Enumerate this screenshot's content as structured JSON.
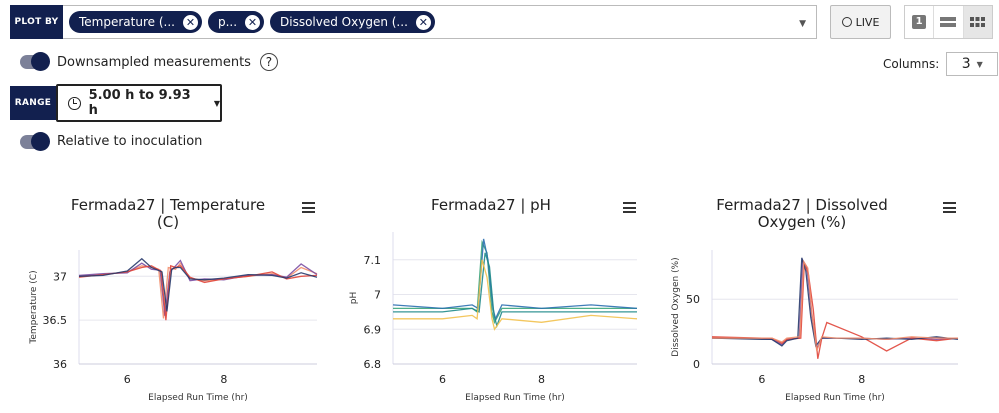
{
  "toolbar": {
    "plot_by_label": "PLOT BY",
    "chips": [
      "Temperature (...",
      "p...",
      "Dissolved Oxygen (..."
    ],
    "live_label": "LIVE",
    "layout_one_label": "1",
    "columns_label": "Columns:",
    "columns_value": "3"
  },
  "options": {
    "downsampled_label": "Downsampled measurements",
    "downsampled_on": true,
    "range_label": "RANGE",
    "range_value": "5.00 h to 9.93 h",
    "relative_label": "Relative to inoculation",
    "relative_on": true
  },
  "colors": {
    "navy": "#12204f",
    "series": [
      "#f28e6b",
      "#3aa57a",
      "#7b4fa3",
      "#2a6fb0",
      "#e0453a",
      "#1f8a8a",
      "#283a6b",
      "#f2c14e"
    ]
  },
  "chart_data": [
    {
      "type": "line",
      "title": "Fermada27 | Temperature (C)",
      "xlabel": "Elapsed Run Time (hr)",
      "ylabel": "Temperature (C)",
      "xlim": [
        5,
        9.93
      ],
      "ylim": [
        36,
        37.3
      ],
      "xticks": [
        6,
        8
      ],
      "yticks": [
        36,
        36.5,
        37
      ],
      "ytick_labels": [
        "36",
        "36.5",
        "37"
      ],
      "xtick_labels": [
        "6",
        "8"
      ],
      "series": [
        {
          "x": [
            5,
            5.5,
            6,
            6.3,
            6.5,
            6.65,
            6.75,
            6.85,
            7,
            7.1,
            7.3,
            7.6,
            8,
            8.5,
            9,
            9.3,
            9.6,
            9.93
          ],
          "y": [
            37.0,
            37.02,
            37.05,
            37.12,
            37.1,
            37.08,
            36.52,
            37.1,
            37.08,
            37.15,
            36.98,
            36.95,
            36.97,
            37.0,
            37.03,
            36.98,
            37.1,
            37.03
          ]
        },
        {
          "x": [
            5,
            5.5,
            6,
            6.3,
            6.5,
            6.68,
            6.78,
            6.88,
            7,
            7.1,
            7.3,
            7.6,
            8,
            8.5,
            9,
            9.3,
            9.6,
            9.93
          ],
          "y": [
            37.01,
            37.03,
            37.04,
            37.15,
            37.08,
            37.07,
            36.55,
            37.05,
            37.12,
            37.18,
            36.95,
            36.97,
            36.96,
            37.01,
            37.02,
            36.99,
            37.14,
            37.02
          ]
        },
        {
          "x": [
            5,
            5.5,
            6,
            6.3,
            6.5,
            6.7,
            6.8,
            6.9,
            7,
            7.1,
            7.3,
            7.6,
            8,
            8.5,
            9,
            9.3,
            9.6,
            9.93
          ],
          "y": [
            36.99,
            37.02,
            37.05,
            37.1,
            37.12,
            37.06,
            36.5,
            37.12,
            37.1,
            37.12,
            36.99,
            36.93,
            36.97,
            37.0,
            37.05,
            36.97,
            37.0,
            37.01
          ]
        },
        {
          "x": [
            5,
            5.5,
            6,
            6.3,
            6.5,
            6.72,
            6.82,
            6.92,
            7,
            7.1,
            7.3,
            7.6,
            8,
            8.5,
            9,
            9.3,
            9.6,
            9.93
          ],
          "y": [
            37.0,
            37.01,
            37.06,
            37.2,
            37.1,
            37.05,
            36.6,
            37.08,
            37.1,
            37.1,
            36.97,
            36.96,
            36.98,
            37.02,
            37.01,
            36.98,
            37.04,
            36.99
          ]
        }
      ]
    },
    {
      "type": "line",
      "title": "Fermada27 | pH",
      "xlabel": "Elapsed Run Time (hr)",
      "ylabel": "pH",
      "xlim": [
        5,
        9.93
      ],
      "ylim": [
        6.8,
        7.18
      ],
      "xticks": [
        6,
        8
      ],
      "yticks": [
        6.8,
        6.9,
        7,
        7.1
      ],
      "ytick_labels": [
        "6.8",
        "6.9",
        "7",
        "7.1"
      ],
      "xtick_labels": [
        "6",
        "8"
      ],
      "series": [
        {
          "x": [
            5,
            6,
            6.6,
            6.7,
            6.8,
            6.9,
            7.0,
            7.05,
            7.2,
            8,
            9,
            9.93
          ],
          "y": [
            6.96,
            6.96,
            6.96,
            6.95,
            7.15,
            7.12,
            6.95,
            6.92,
            6.96,
            6.96,
            6.96,
            6.96
          ]
        },
        {
          "x": [
            5,
            6,
            6.6,
            6.72,
            6.83,
            6.92,
            7.02,
            7.07,
            7.2,
            8,
            9,
            9.93
          ],
          "y": [
            6.97,
            6.96,
            6.97,
            6.96,
            7.16,
            7.1,
            6.96,
            6.93,
            6.97,
            6.96,
            6.97,
            6.96
          ]
        },
        {
          "x": [
            5,
            6,
            6.6,
            6.74,
            6.86,
            6.95,
            7.04,
            7.1,
            7.2,
            8,
            9,
            9.93
          ],
          "y": [
            6.95,
            6.95,
            6.96,
            6.95,
            7.12,
            7.08,
            6.94,
            6.91,
            6.95,
            6.95,
            6.95,
            6.95
          ]
        },
        {
          "x": [
            5,
            6,
            6.6,
            6.7,
            6.8,
            6.9,
            7.0,
            7.05,
            7.2,
            8,
            9,
            9.93
          ],
          "y": [
            6.93,
            6.93,
            6.94,
            6.93,
            7.1,
            7.05,
            6.93,
            6.9,
            6.93,
            6.92,
            6.94,
            6.93
          ]
        }
      ]
    },
    {
      "type": "line",
      "title": "Fermada27 | Dissolved Oxygen (%)",
      "xlabel": "Elapsed Run Time (hr)",
      "ylabel": "Dissolved Oxygen (%)",
      "xlim": [
        5,
        9.93
      ],
      "ylim": [
        0,
        88
      ],
      "xticks": [
        6,
        8
      ],
      "yticks": [
        0,
        50
      ],
      "ytick_labels": [
        "0",
        "50"
      ],
      "xtick_labels": [
        "6",
        "8"
      ],
      "series": [
        {
          "x": [
            5,
            6,
            6.2,
            6.4,
            6.5,
            6.75,
            6.82,
            6.9,
            7.0,
            7.1,
            7.2,
            7.5,
            8,
            8.5,
            9,
            9.5,
            9.93
          ],
          "y": [
            20,
            20,
            19,
            15,
            19,
            20,
            80,
            75,
            38,
            12,
            20,
            20,
            20,
            19,
            20,
            19,
            20
          ]
        },
        {
          "x": [
            5,
            6,
            6.2,
            6.4,
            6.5,
            6.78,
            6.85,
            6.93,
            7.03,
            7.12,
            7.2,
            7.3,
            8,
            8.5,
            9,
            9.5,
            9.93
          ],
          "y": [
            21,
            20,
            20,
            16,
            19,
            20,
            78,
            70,
            42,
            4,
            20,
            32,
            21,
            10,
            20,
            18,
            20
          ]
        },
        {
          "x": [
            5,
            6,
            6.2,
            6.4,
            6.5,
            6.72,
            6.8,
            6.88,
            6.98,
            7.08,
            7.2,
            7.5,
            8,
            8.5,
            9,
            9.5,
            9.93
          ],
          "y": [
            20,
            19,
            19,
            14,
            18,
            20,
            82,
            72,
            36,
            14,
            20,
            20,
            19,
            20,
            19,
            21,
            19
          ]
        },
        {
          "x": [
            5,
            6,
            6.2,
            6.4,
            6.5,
            6.76,
            6.84,
            6.92,
            7.0,
            7.1,
            7.2,
            7.5,
            8,
            8.5,
            9,
            9.5,
            9.93
          ],
          "y": [
            20,
            20,
            20,
            17,
            20,
            21,
            79,
            74,
            40,
            10,
            21,
            20,
            20,
            19,
            21,
            20,
            20
          ]
        }
      ]
    }
  ]
}
